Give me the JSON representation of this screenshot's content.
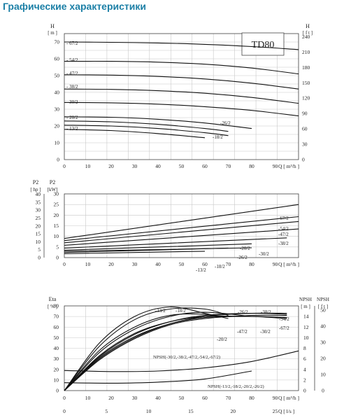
{
  "page": {
    "title": "Графические характеристики"
  },
  "chart_data": [
    {
      "type": "line",
      "model": "TD80",
      "xlabel": "Q [ m³/h ]",
      "ylabel_left": "H [ m ]",
      "ylabel_right": "H [ f t ]",
      "xlim": [
        0,
        100
      ],
      "ylim": [
        0,
        75
      ],
      "ylim_right": [
        0,
        246
      ],
      "x_ticks": [
        "0",
        "10",
        "20",
        "30",
        "40",
        "50",
        "60",
        "70",
        "80",
        "90"
      ],
      "y_ticks": [
        "0",
        "10",
        "20",
        "30",
        "40",
        "50",
        "60",
        "70"
      ],
      "y_ticks_right": [
        "0",
        "30",
        "60",
        "90",
        "120",
        "150",
        "180",
        "210",
        "240"
      ],
      "grid": true,
      "series": [
        {
          "name": "67/2",
          "x": [
            0,
            20,
            40,
            60,
            80,
            100
          ],
          "y": [
            70,
            69.8,
            69.4,
            68.6,
            67.3,
            65.5
          ]
        },
        {
          "name": "54/2",
          "x": [
            0,
            20,
            40,
            60,
            80,
            100
          ],
          "y": [
            58.5,
            58.5,
            58,
            56.8,
            54.5,
            51
          ]
        },
        {
          "name": "47/2",
          "x": [
            0,
            20,
            40,
            60,
            80,
            100
          ],
          "y": [
            50.5,
            50.3,
            49.5,
            48,
            45.5,
            42
          ]
        },
        {
          "name": "38/2",
          "x": [
            0,
            20,
            40,
            60,
            80,
            100
          ],
          "y": [
            42,
            41.8,
            41,
            39.5,
            37,
            33.5
          ]
        },
        {
          "name": "30/2",
          "x": [
            0,
            20,
            40,
            60,
            80,
            100
          ],
          "y": [
            34,
            33.8,
            33,
            31.5,
            29.3,
            26
          ]
        },
        {
          "name": "26/2",
          "x": [
            0,
            20,
            40,
            60,
            80
          ],
          "y": [
            25.5,
            25.2,
            24,
            21.8,
            18.5
          ]
        },
        {
          "name": "20/2",
          "x": [
            0,
            20,
            40,
            60,
            70
          ],
          "y": [
            23,
            22.5,
            21,
            18.5,
            16.8
          ]
        },
        {
          "name": "18/2",
          "x": [
            0,
            20,
            40,
            60,
            70
          ],
          "y": [
            20.5,
            20,
            18.5,
            16,
            14.3
          ]
        },
        {
          "name": "13/2",
          "x": [
            0,
            20,
            40,
            60
          ],
          "y": [
            18,
            17.3,
            15.5,
            13
          ]
        }
      ],
      "labels": [
        "- 67/2",
        "- 54/2",
        "- 47/2",
        "- 38/2",
        "- 30/2",
        "- 20/2",
        "- 13/2",
        "-26/2",
        "-18/2"
      ]
    },
    {
      "type": "line",
      "xlabel": "Q [ m³/h ]",
      "ylabel_hp": "P2 [ hp ]",
      "ylabel_kw": "P2 [ kW ]",
      "xlim": [
        0,
        100
      ],
      "ylim_kw": [
        0,
        30
      ],
      "ylim_hp": [
        0,
        40
      ],
      "x_ticks": [
        "0",
        "10",
        "20",
        "30",
        "40",
        "50",
        "60",
        "70",
        "80",
        "90"
      ],
      "y_ticks_kw": [
        "0",
        "5",
        "10",
        "15",
        "20",
        "25",
        "30"
      ],
      "y_ticks_hp": [
        "0",
        "5",
        "10",
        "15",
        "20",
        "25",
        "30",
        "35",
        "40"
      ],
      "grid": true,
      "series": [
        {
          "name": "67/2",
          "x": [
            0,
            100
          ],
          "y": [
            9,
            25
          ]
        },
        {
          "name": "54/2",
          "x": [
            0,
            100
          ],
          "y": [
            8,
            19.3
          ]
        },
        {
          "name": "47/2",
          "x": [
            0,
            100
          ],
          "y": [
            7,
            17
          ]
        },
        {
          "name": "38/2",
          "x": [
            0,
            100
          ],
          "y": [
            5.8,
            13.5
          ]
        },
        {
          "name": "30/2",
          "x": [
            0,
            95
          ],
          "y": [
            4.5,
            9.3
          ]
        },
        {
          "name": "26/2",
          "x": [
            0,
            80
          ],
          "y": [
            3.5,
            6.5
          ]
        },
        {
          "name": "20/2",
          "x": [
            0,
            80
          ],
          "y": [
            3,
            4.6
          ]
        },
        {
          "name": "18/2",
          "x": [
            0,
            70
          ],
          "y": [
            2.4,
            4.5
          ]
        },
        {
          "name": "13/2",
          "x": [
            0,
            60
          ],
          "y": [
            1.8,
            3
          ]
        }
      ],
      "labels": [
        "-67/2",
        "-54/2",
        "-47/2",
        "-38/2",
        "-30/2",
        "-26/2",
        "-20/2",
        "-18/2",
        "-13/2"
      ]
    },
    {
      "type": "line",
      "ylabel_left": "Eta [ % ]",
      "ylabel_npsh_m": "NPSH [ m ]",
      "ylabel_npsh_ft": "NPSH [ f t ]",
      "xlabel": "Q [ m³/h ]",
      "xlabel_secondary": "Q [ l/s ]",
      "xlim": [
        0,
        100
      ],
      "ylim": [
        0,
        80
      ],
      "ylim_npsh_m": [
        0,
        16
      ],
      "ylim_npsh_ft": [
        0,
        52.5
      ],
      "x_ticks": [
        "0",
        "10",
        "20",
        "30",
        "40",
        "50",
        "60",
        "70",
        "80",
        "90"
      ],
      "x_ticks_secondary": [
        "0",
        "5",
        "10",
        "15",
        "20",
        "25"
      ],
      "y_ticks": [
        "0",
        "10",
        "20",
        "30",
        "40",
        "50",
        "60",
        "70",
        "80"
      ],
      "y_ticks_npsh_m": [
        "0",
        "2",
        "4",
        "6",
        "8",
        "10",
        "12",
        "14"
      ],
      "y_ticks_npsh_ft": [
        "0",
        "10",
        "20",
        "30",
        "40",
        "50"
      ],
      "grid": true,
      "eta_series": [
        {
          "name": "13/2",
          "x": [
            0,
            15,
            30,
            45,
            60,
            65
          ],
          "y": [
            0,
            45,
            70,
            79,
            73,
            70
          ]
        },
        {
          "name": "18/2",
          "x": [
            0,
            15,
            30,
            45,
            60,
            70
          ],
          "y": [
            0,
            42,
            67,
            77,
            77,
            71
          ]
        },
        {
          "name": "20/2",
          "x": [
            0,
            15,
            30,
            45,
            60,
            70
          ],
          "y": [
            0,
            38,
            60,
            71,
            72,
            68
          ]
        },
        {
          "name": "26/2",
          "x": [
            0,
            15,
            30,
            45,
            60,
            80
          ],
          "y": [
            0,
            36,
            58,
            70,
            74,
            70
          ]
        },
        {
          "name": "30/2",
          "x": [
            0,
            15,
            30,
            45,
            60,
            80,
            95
          ],
          "y": [
            0,
            33,
            54,
            65,
            70,
            70,
            68
          ]
        },
        {
          "name": "38/2",
          "x": [
            0,
            15,
            30,
            45,
            60,
            80,
            95
          ],
          "y": [
            0,
            32,
            53,
            65,
            71,
            73,
            72
          ]
        },
        {
          "name": "47/2",
          "x": [
            0,
            15,
            30,
            45,
            60,
            80,
            95
          ],
          "y": [
            0,
            31,
            51,
            63,
            69,
            70,
            69
          ]
        },
        {
          "name": "54/2",
          "x": [
            0,
            15,
            30,
            45,
            60,
            80,
            95
          ],
          "y": [
            0,
            30,
            50,
            63,
            70,
            73,
            73
          ]
        },
        {
          "name": "67/2",
          "x": [
            0,
            15,
            30,
            45,
            60,
            80,
            95
          ],
          "y": [
            0,
            29,
            49,
            62,
            68,
            71,
            71
          ]
        }
      ],
      "npsh_series": [
        {
          "name": "NPSH(-30/2,-38/2,-47/2,-54/2,-67/2)",
          "x": [
            0,
            20,
            40,
            60,
            80,
            100
          ],
          "y_m": [
            3.8,
            3.6,
            3.7,
            4.3,
            5.5,
            7.5
          ]
        },
        {
          "name": "NPSH(-13/2,-18/2,-20/2,-26/2)",
          "x": [
            0,
            20,
            40,
            60,
            80
          ],
          "y_m": [
            1.5,
            1.4,
            1.6,
            2.2,
            3.7
          ]
        }
      ],
      "labels": [
        "-13/2",
        "-18/2",
        "-26/2",
        "-38/2",
        "-54/2",
        "-47/2",
        "-67/2",
        "-30/2",
        "-20/2"
      ],
      "npsh_labels": [
        "NPSH(-30/2,-38/2,-47/2,-54/2,-67/2)",
        "NPSH(-13/2,-18/2,-20/2,-26/2)"
      ]
    }
  ]
}
